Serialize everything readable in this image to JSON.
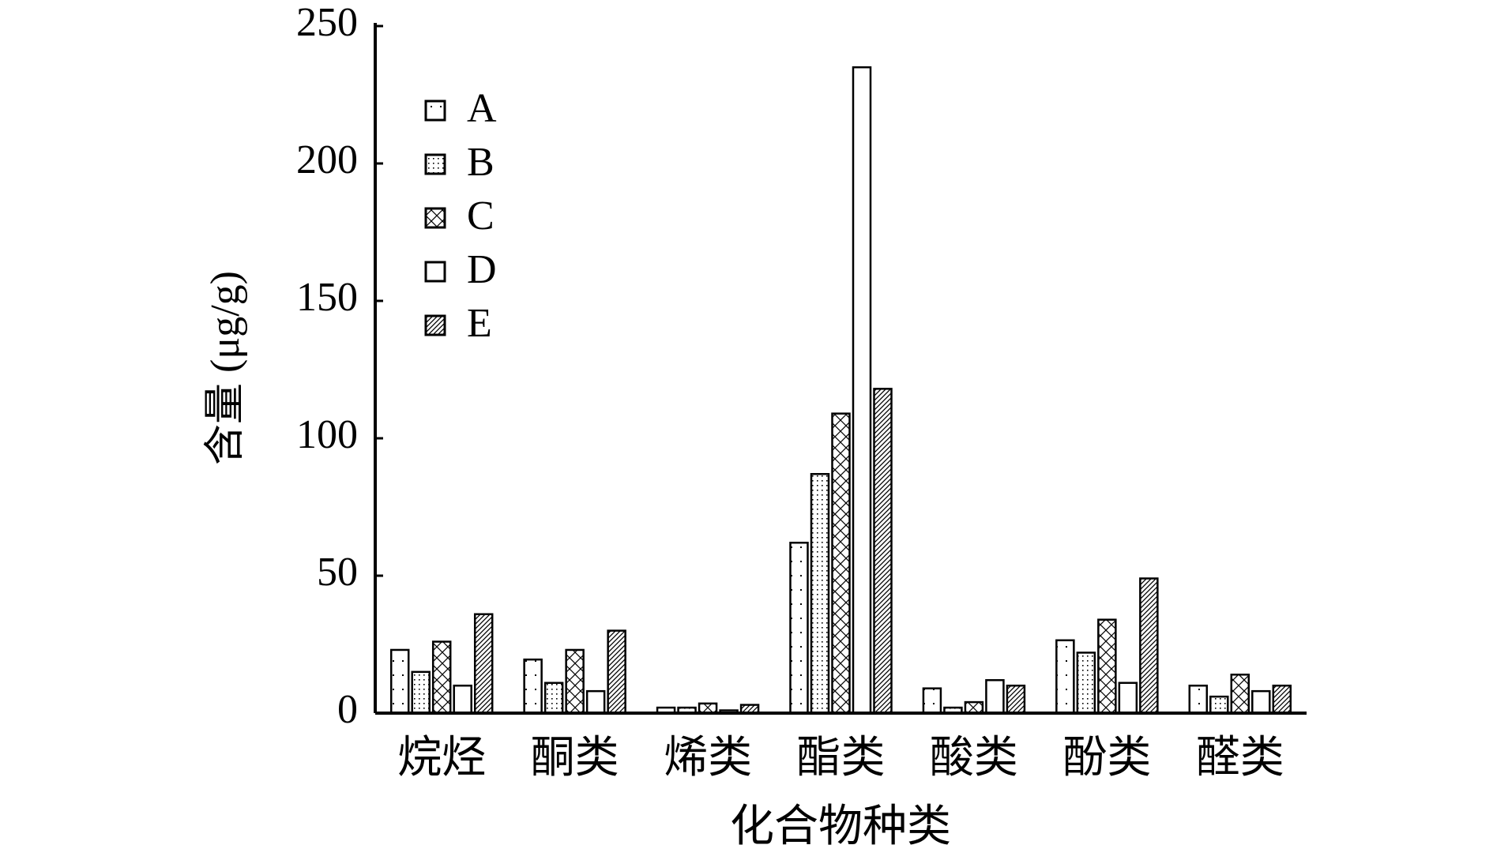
{
  "chart_data": {
    "type": "bar",
    "y_label": "含量 (μg/g)",
    "x_label": "化合物种类",
    "categories": [
      "烷烃",
      "酮类",
      "烯类",
      "酯类",
      "酸类",
      "酚类",
      "醛类"
    ],
    "series": [
      {
        "name": "A",
        "color": "#000000",
        "pattern": "sparse-dots",
        "values": [
          23,
          19.5,
          2,
          62,
          9,
          26.5,
          10
        ]
      },
      {
        "name": "B",
        "color": "#000000",
        "pattern": "dense-dots",
        "values": [
          15,
          11,
          2,
          87,
          2,
          22,
          6
        ]
      },
      {
        "name": "C",
        "color": "#000000",
        "pattern": "crosshatch",
        "values": [
          26,
          23,
          3.5,
          109,
          4,
          34,
          14
        ]
      },
      {
        "name": "D",
        "color": "#000000",
        "pattern": "none",
        "values": [
          10,
          8,
          1,
          235,
          12,
          11,
          8
        ]
      },
      {
        "name": "E",
        "color": "#000000",
        "pattern": "diagonal",
        "values": [
          36,
          30,
          3,
          118,
          10,
          49,
          10
        ]
      }
    ],
    "ylim": [
      0,
      250
    ],
    "yticks": [
      0,
      50,
      100,
      150,
      200,
      250
    ],
    "grid": false,
    "legend": "upper left"
  }
}
